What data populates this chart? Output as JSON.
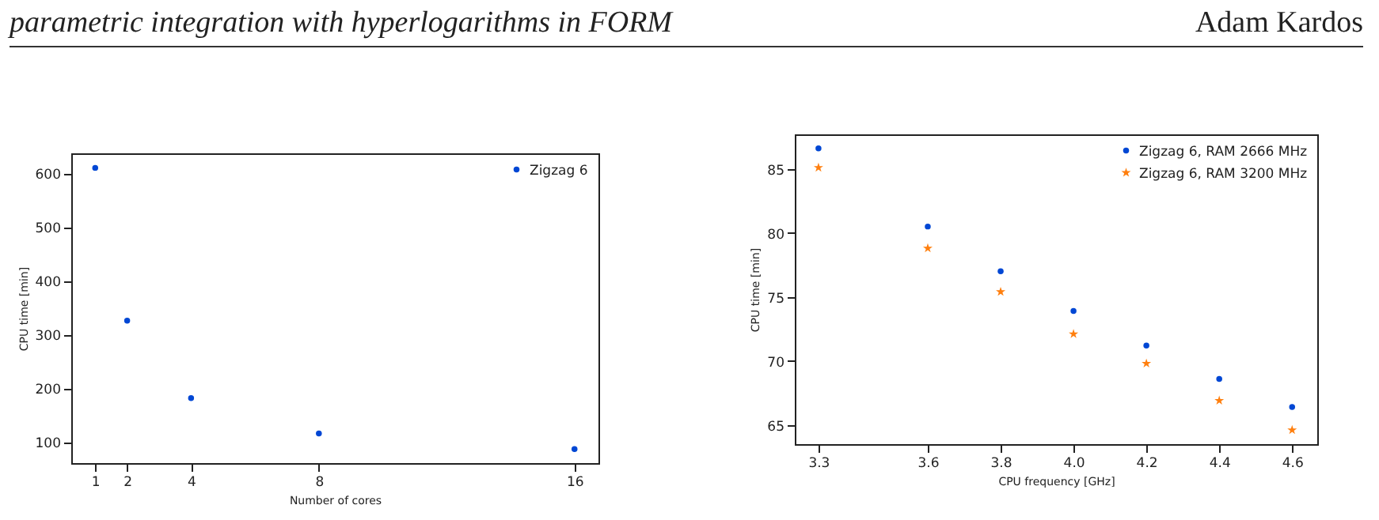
{
  "chart_data": [
    {
      "type": "scatter",
      "annotations": [
        "parametric integration with hyperlogarithms in FORM"
      ],
      "xlabel": "Number of cores",
      "ylabel": "CPU time [min]",
      "x": [
        1,
        2,
        4,
        8,
        16
      ],
      "series": [
        {
          "name": "Zigzag 6",
          "color": "#0047d4",
          "marker": "circle",
          "values": [
            610,
            326,
            182,
            116,
            87
          ]
        }
      ],
      "xlim": [
        0.25,
        16.75
      ],
      "xticks": [
        1,
        2,
        4,
        8,
        16
      ],
      "ylim": [
        61,
        637
      ],
      "yticks": [
        100,
        200,
        300,
        400,
        500,
        600
      ],
      "grid": false,
      "legend": "top right"
    },
    {
      "type": "scatter",
      "annotations": [
        "Adam Kardos"
      ],
      "xlabel": "CPU frequency [GHz]",
      "ylabel": "CPU time [min]",
      "x": [
        3.3,
        3.6,
        3.8,
        4.0,
        4.2,
        4.4,
        4.6
      ],
      "series": [
        {
          "name": "Zigzag 6, RAM 2666 MHz",
          "color": "#0047d4",
          "marker": "circle",
          "values": [
            86.6,
            80.5,
            77.0,
            73.9,
            71.2,
            68.6,
            66.4
          ]
        },
        {
          "name": "Zigzag 6, RAM 3200 MHz",
          "color": "#ff7f0e",
          "marker": "star",
          "values": [
            85.1,
            78.8,
            75.4,
            72.1,
            69.8,
            66.9,
            64.6
          ]
        }
      ],
      "xlim": [
        3.235,
        4.669
      ],
      "xticks": [
        3.3,
        3.6,
        3.8,
        {
          "value": 4.0,
          "label": "4.0"
        },
        4.2,
        4.4,
        4.6
      ],
      "ylim": [
        63.5,
        87.7
      ],
      "yticks": [
        65,
        70,
        75,
        80,
        85
      ],
      "grid": false,
      "legend": "top right"
    }
  ]
}
